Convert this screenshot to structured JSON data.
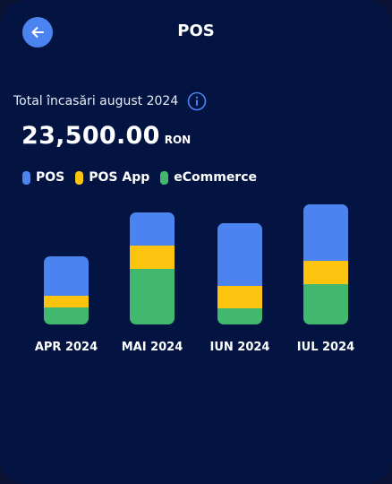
{
  "header": {
    "title": "POS",
    "back_icon": "arrow-left-icon"
  },
  "summary": {
    "label": "Total încasări august 2024",
    "info_icon": "info-icon",
    "amount": "23,500.00",
    "currency": "RON"
  },
  "colors": {
    "background": "#031442",
    "accent": "#4b84f1",
    "pos": "#4b84f1",
    "pos_app": "#fcc30f",
    "ecommerce": "#42b86f"
  },
  "chart_data": {
    "type": "bar",
    "stacked": true,
    "categories": [
      "APR 2024",
      "MAI 2024",
      "IUN 2024",
      "IUL 2024"
    ],
    "series": [
      {
        "name": "eCommerce",
        "values": [
          19,
          62,
          18,
          45
        ]
      },
      {
        "name": "POS App",
        "values": [
          13,
          26,
          25,
          26
        ]
      },
      {
        "name": "POS",
        "values": [
          44,
          37,
          70,
          63
        ]
      }
    ],
    "legend": [
      "POS",
      "POS App",
      "eCommerce"
    ],
    "legend_position": "top-left",
    "grid": false
  }
}
